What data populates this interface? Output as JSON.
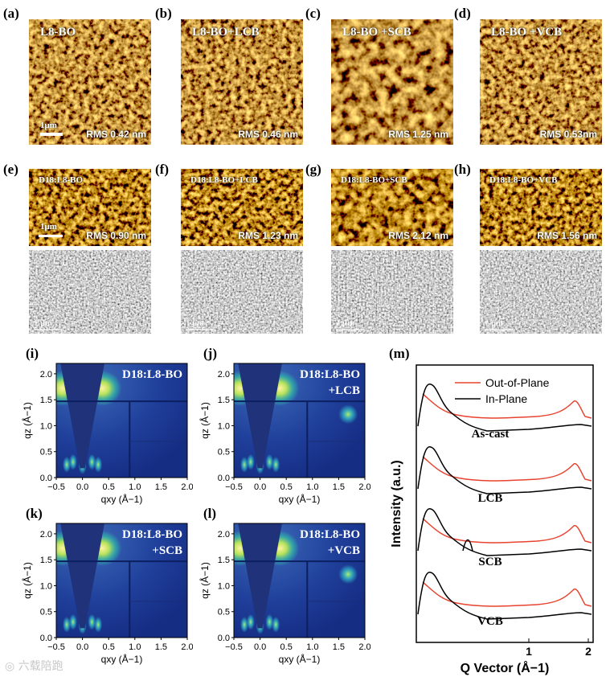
{
  "afm_top": [
    {
      "label": "(a)",
      "title": "L8-BO",
      "rms": "RMS 0.42 nm",
      "scale": "1μm"
    },
    {
      "label": "(b)",
      "title": "L8-BO+LCB",
      "rms": "RMS 0.46 nm",
      "scale": ""
    },
    {
      "label": "(c)",
      "title": "L8-BO +SCB",
      "rms": "RMS 1.25 nm",
      "scale": ""
    },
    {
      "label": "(d)",
      "title": "L8-BO +VCB",
      "rms": "RMS 0.53nm",
      "scale": ""
    }
  ],
  "afm_blend": [
    {
      "label": "(e)",
      "title": "D18:L8-BO",
      "rms": "RMS 0.90 nm",
      "scale": "1μm"
    },
    {
      "label": "(f)",
      "title": "D18:L8-BO+LCB",
      "rms": "RMS 1.23 nm",
      "scale": ""
    },
    {
      "label": "(g)",
      "title": "D18:L8-BO+SCB",
      "rms": "RMS 2.12 nm",
      "scale": ""
    },
    {
      "label": "(h)",
      "title": "D18:L8-BO+VCB",
      "rms": "RMS 1.56 nm",
      "scale": ""
    }
  ],
  "sem_scale": "1 μm",
  "giwaxs": [
    {
      "label": "(i)",
      "line1": "D18:L8-BO",
      "line2": "",
      "extra_spot": false
    },
    {
      "label": "(j)",
      "line1": "D18:L8-BO",
      "line2": "+LCB",
      "extra_spot": true
    },
    {
      "label": "(k)",
      "line1": "D18:L8-BO",
      "line2": "+SCB",
      "extra_spot": false
    },
    {
      "label": "(l)",
      "line1": "D18:L8-BO",
      "line2": "+VCB",
      "extra_spot": true
    }
  ],
  "giwaxs_axes": {
    "xticks": [
      "−0.5",
      "0.0",
      "0.5",
      "1.0",
      "1.5",
      "2.0"
    ],
    "yticks": [
      "0.0",
      "0.5",
      "1.0",
      "1.5",
      "2.0"
    ],
    "xlabel": "qxy (Å−1)",
    "ylabel": "qz (Å−1)"
  },
  "profiles": {
    "label": "(m)",
    "ylabel": "Intensity (a.u.)",
    "xlabel": "Q Vector (Å−1)",
    "xticks": [
      "1",
      "2"
    ],
    "legend": [
      "Out-of-Plane",
      "In-Plane"
    ],
    "series_labels": [
      "As-cast",
      "LCB",
      "SCB",
      "VCB"
    ],
    "colors": {
      "oop": "#e8432f",
      "ip": "#000000"
    }
  },
  "watermark": "◎ 六载陪跑"
}
